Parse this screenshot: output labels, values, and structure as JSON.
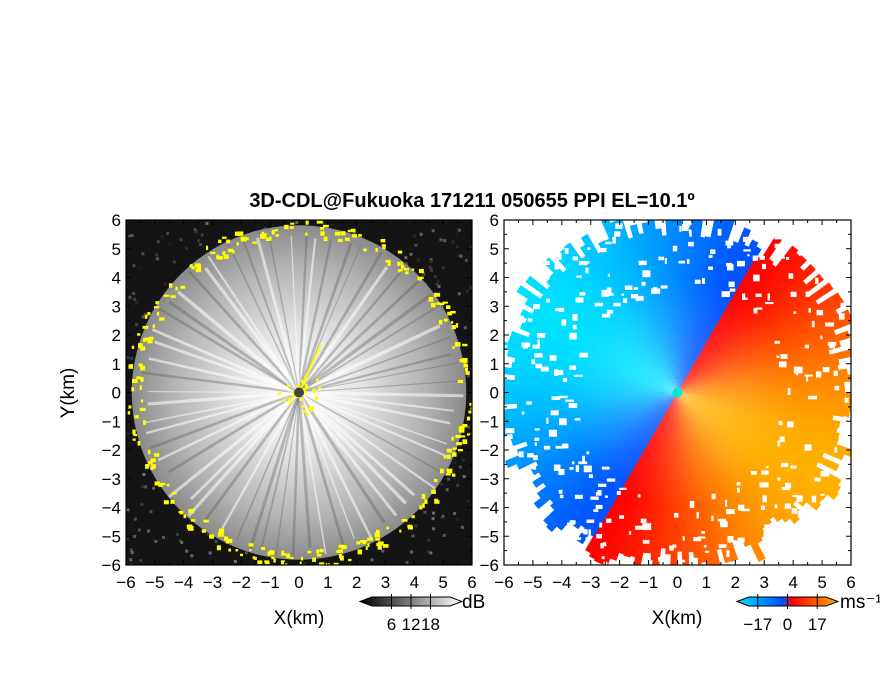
{
  "title": "3D-CDL@Fukuoka 171211 050655 PPI EL=10.1º",
  "chart_data": [
    {
      "type": "heatmap",
      "name": "snr",
      "xlabel": "X(km)",
      "ylabel": "Y(km)",
      "xlim": [
        -6,
        6
      ],
      "ylim": [
        -6,
        6
      ],
      "xticks": [
        "−6",
        "−5",
        "−4",
        "−3",
        "−2",
        "−1",
        "0",
        "1",
        "2",
        "3",
        "4",
        "5",
        "6"
      ],
      "yticks": [
        "6",
        "5",
        "4",
        "3",
        "2",
        "1",
        "0",
        "−1",
        "−2",
        "−3",
        "−4",
        "−5",
        "−6"
      ],
      "colorbar": {
        "ticks": [
          "6",
          "12",
          "18"
        ],
        "tick_values": [
          6,
          12,
          18
        ],
        "range": [
          0,
          24
        ],
        "unit": "dB",
        "colors": [
          "#000000",
          "#ffffff"
        ]
      },
      "flag_color": "#ffff00",
      "range_km": 5.8
    },
    {
      "type": "heatmap",
      "name": "doppler",
      "xlabel": "X(km)",
      "xlim": [
        -6,
        6
      ],
      "ylim": [
        -6,
        6
      ],
      "xticks": [
        "−6",
        "−5",
        "−4",
        "−3",
        "−2",
        "−1",
        "0",
        "1",
        "2",
        "3",
        "4",
        "5",
        "6"
      ],
      "yticks": [
        "6",
        "5",
        "4",
        "3",
        "2",
        "1",
        "0",
        "−1",
        "−2",
        "−3",
        "−4",
        "−5",
        "−6"
      ],
      "colorbar": {
        "ticks": [
          "−17",
          "0",
          "17"
        ],
        "tick_values": [
          -17,
          0,
          17
        ],
        "range": [
          -22,
          22
        ],
        "unit": "ms⁻¹",
        "colors": [
          "#00e0ff",
          "#0050ff",
          "#ff0000",
          "#ffb000"
        ]
      },
      "zero_line_azimuth_deg": 30,
      "range_km": 6.6
    }
  ]
}
